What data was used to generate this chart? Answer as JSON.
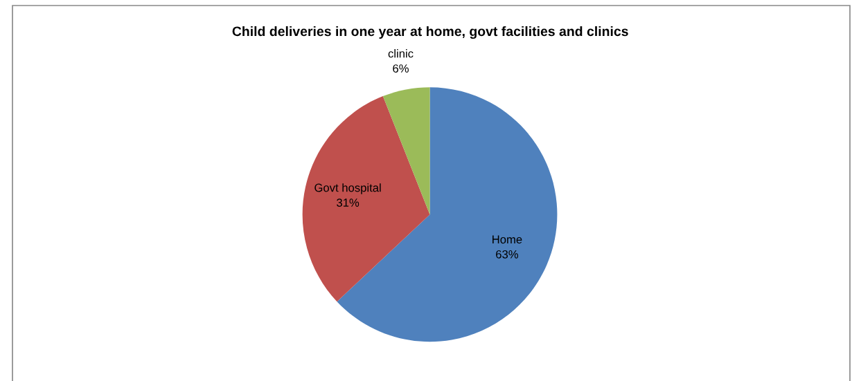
{
  "chart_data": {
    "type": "pie",
    "title": "Child deliveries in one year at home, govt facilities and clinics",
    "categories": [
      "Home",
      "Govt hospital",
      "clinic"
    ],
    "values": [
      63,
      31,
      6
    ],
    "value_labels": [
      "63%",
      "31%",
      "6%"
    ],
    "colors": [
      "#4f81bd",
      "#c0504d",
      "#9bbb59"
    ],
    "legend": false
  }
}
